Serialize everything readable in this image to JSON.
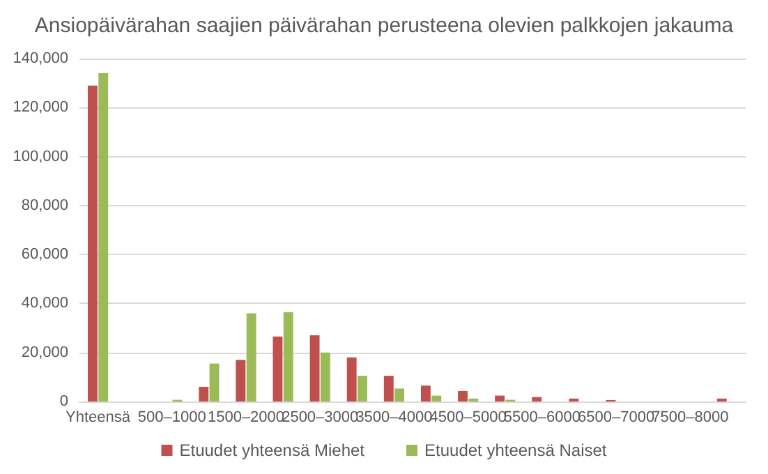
{
  "chart_data": {
    "type": "bar",
    "title": "Ansiopäivärahan saajien päivärahan perusteena olevien palkkojen jakauma",
    "categories": [
      "Yhteensä",
      null,
      "500–1000",
      null,
      "1500–2000",
      null,
      "2500–3000",
      null,
      "3500–4000",
      null,
      "4500–5000",
      null,
      "5500–6000",
      null,
      "6500–7000",
      null,
      "7500–8000",
      null
    ],
    "series": [
      {
        "name": "Etuudet yhteensä Miehet",
        "color": "#c0504d",
        "values": [
          129000,
          0,
          0,
          6000,
          17000,
          26500,
          27000,
          18000,
          10500,
          6500,
          4300,
          2400,
          1800,
          1200,
          600,
          0,
          0,
          1200
        ]
      },
      {
        "name": "Etuudet yhteensä Naiset",
        "color": "#9bbb59",
        "values": [
          134000,
          0,
          700,
          15500,
          36000,
          36500,
          20000,
          10500,
          5300,
          2400,
          1200,
          700,
          0,
          0,
          0,
          0,
          0,
          0
        ]
      }
    ],
    "ylim": [
      0,
      140000
    ],
    "yticks": [
      0,
      {
        "value": 20000,
        "label": "20,000"
      },
      {
        "value": 40000,
        "label": "40,000"
      },
      {
        "value": 60000,
        "label": "60,000"
      },
      {
        "value": 80000,
        "label": "80,000"
      },
      {
        "value": 100000,
        "label": "100,000"
      },
      {
        "value": 120000,
        "label": "120,000"
      },
      {
        "value": 140000,
        "label": "140,000"
      }
    ],
    "grid": "y",
    "legend": "bottom"
  }
}
